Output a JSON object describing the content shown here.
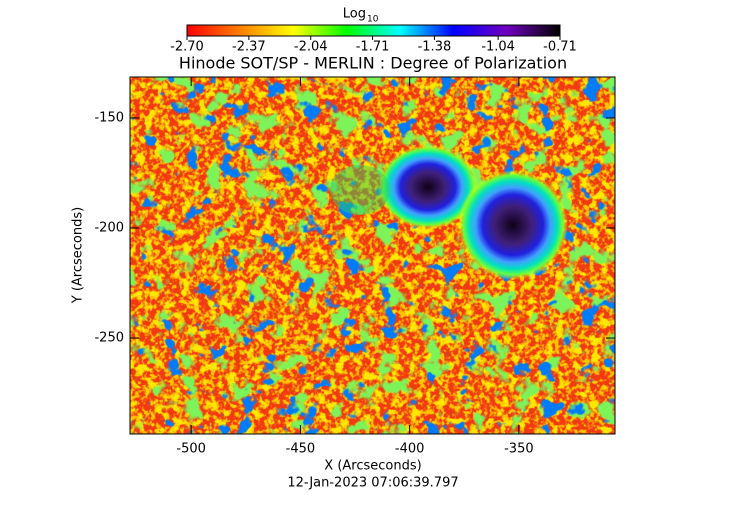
{
  "chart_data": {
    "type": "heatmap",
    "title": "Hinode SOT/SP - MERLIN : Degree of Polarization",
    "x_label": "X (Arcseconds)",
    "y_label": "Y (Arcseconds)",
    "timestamp": "12-Jan-2023 07:06:39.797",
    "colorbar_title": "Log",
    "colorbar_title_subscript": "10",
    "colormap": [
      "#ff0000",
      "#ff8000",
      "#ffff00",
      "#00ff00",
      "#00ffff",
      "#0000ff",
      "#7000c0",
      "#000000"
    ],
    "clim": [
      -2.7,
      -0.71
    ],
    "cticks": [
      {
        "value": -2.7,
        "label": "-2.70"
      },
      {
        "value": -2.37,
        "label": "-2.37"
      },
      {
        "value": -2.04,
        "label": "-2.04"
      },
      {
        "value": -1.71,
        "label": "-1.71"
      },
      {
        "value": -1.38,
        "label": "-1.38"
      },
      {
        "value": -1.04,
        "label": "-1.04"
      },
      {
        "value": -0.71,
        "label": "-0.71"
      }
    ],
    "xlim": [
      -528,
      -306
    ],
    "xticks": [
      -500,
      -450,
      -400,
      -350
    ],
    "ylim": [
      -293.6,
      -131.4
    ],
    "yticks": [
      -150,
      -200,
      -250
    ]
  }
}
